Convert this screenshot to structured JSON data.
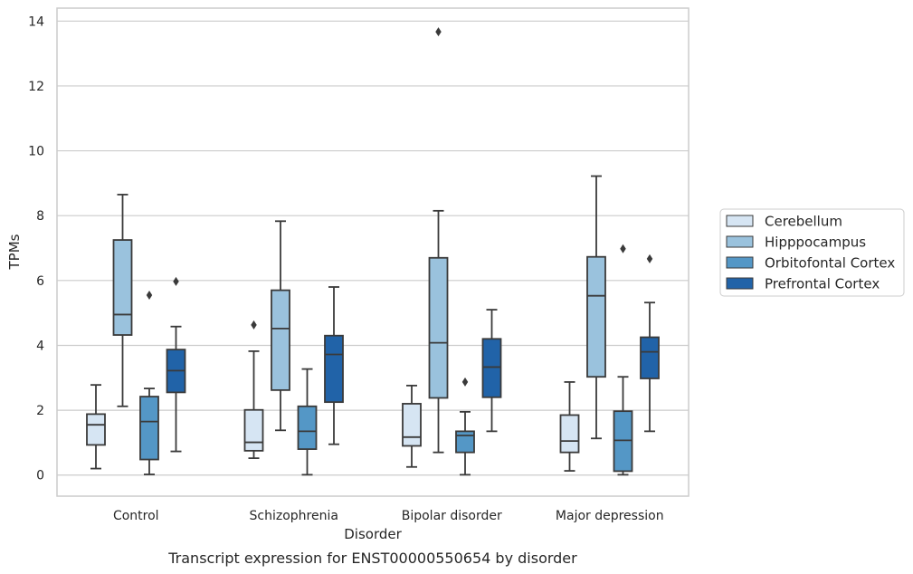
{
  "chart_data": {
    "type": "box",
    "title": "",
    "caption": "Transcript expression for ENST00000550654 by disorder",
    "xlabel": "Disorder",
    "ylabel": "TPMs",
    "ylim": [
      -0.65,
      14.4
    ],
    "yticks": [
      0,
      2,
      4,
      6,
      8,
      10,
      12,
      14
    ],
    "ytick_labels": [
      "0",
      "2",
      "4",
      "6",
      "8",
      "10",
      "12",
      "14"
    ],
    "grid": true,
    "legend_placement": "right",
    "categories": [
      "Control",
      "Schizophrenia",
      "Bipolar disorder",
      "Major depression"
    ],
    "series": [
      {
        "name": "Cerebellum",
        "color": "#d6e5f3",
        "boxes": [
          {
            "whislo": 0.2,
            "q1": 0.93,
            "med": 1.55,
            "q3": 1.88,
            "whishi": 2.78,
            "fliers": []
          },
          {
            "whislo": 0.52,
            "q1": 0.75,
            "med": 1.01,
            "q3": 2.01,
            "whishi": 3.82,
            "fliers": [
              4.63
            ]
          },
          {
            "whislo": 0.25,
            "q1": 0.9,
            "med": 1.17,
            "q3": 2.2,
            "whishi": 2.76,
            "fliers": []
          },
          {
            "whislo": 0.13,
            "q1": 0.7,
            "med": 1.05,
            "q3": 1.85,
            "whishi": 2.87,
            "fliers": []
          }
        ]
      },
      {
        "name": "Hipppocampus",
        "color": "#9ac2dd",
        "boxes": [
          {
            "whislo": 2.12,
            "q1": 4.32,
            "med": 4.95,
            "q3": 7.25,
            "whishi": 8.65,
            "fliers": []
          },
          {
            "whislo": 1.38,
            "q1": 2.62,
            "med": 4.52,
            "q3": 5.7,
            "whishi": 7.83,
            "fliers": []
          },
          {
            "whislo": 0.7,
            "q1": 2.38,
            "med": 4.08,
            "q3": 6.7,
            "whishi": 8.15,
            "fliers": [
              13.67
            ]
          },
          {
            "whislo": 1.13,
            "q1": 3.03,
            "med": 5.53,
            "q3": 6.73,
            "whishi": 9.22,
            "fliers": []
          }
        ]
      },
      {
        "name": "Orbitofontal Cortex",
        "color": "#5497c6",
        "boxes": [
          {
            "whislo": 0.02,
            "q1": 0.48,
            "med": 1.65,
            "q3": 2.42,
            "whishi": 2.67,
            "fliers": [
              5.55
            ]
          },
          {
            "whislo": 0.01,
            "q1": 0.8,
            "med": 1.35,
            "q3": 2.12,
            "whishi": 3.27,
            "fliers": []
          },
          {
            "whislo": 0.01,
            "q1": 0.7,
            "med": 1.22,
            "q3": 1.35,
            "whishi": 1.95,
            "fliers": [
              2.87
            ]
          },
          {
            "whislo": 0.01,
            "q1": 0.12,
            "med": 1.07,
            "q3": 1.97,
            "whishi": 3.03,
            "fliers": [
              6.98
            ]
          }
        ]
      },
      {
        "name": "Prefrontal Cortex",
        "color": "#2163a8",
        "boxes": [
          {
            "whislo": 0.73,
            "q1": 2.55,
            "med": 3.22,
            "q3": 3.87,
            "whishi": 4.58,
            "fliers": [
              5.97
            ]
          },
          {
            "whislo": 0.95,
            "q1": 2.25,
            "med": 3.72,
            "q3": 4.3,
            "whishi": 5.8,
            "fliers": []
          },
          {
            "whislo": 1.35,
            "q1": 2.4,
            "med": 3.33,
            "q3": 4.2,
            "whishi": 5.1,
            "fliers": []
          },
          {
            "whislo": 1.35,
            "q1": 2.98,
            "med": 3.8,
            "q3": 4.25,
            "whishi": 5.32,
            "fliers": [
              6.67
            ]
          }
        ]
      }
    ]
  }
}
